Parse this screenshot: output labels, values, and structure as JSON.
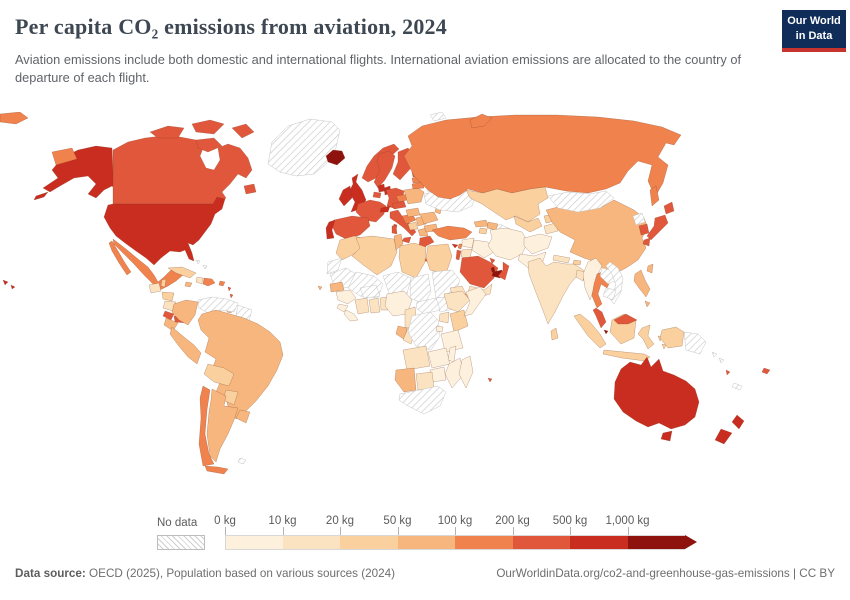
{
  "header": {
    "title": "Per capita CO₂ emissions from aviation, 2024",
    "subtitle": "Aviation emissions include both domestic and international flights. International aviation emissions are allocated to the country of departure of each flight.",
    "logo_line1": "Our World",
    "logo_line2": "in Data",
    "logo_colors": {
      "background": "#102d59",
      "stripe": "#c7342e"
    }
  },
  "legend": {
    "no_data_label": "No data",
    "tick_labels": [
      "0 kg",
      "10 kg",
      "20 kg",
      "50 kg",
      "100 kg",
      "200 kg",
      "500 kg",
      "1,000 kg"
    ]
  },
  "footer": {
    "source_label": "Data source:",
    "source_rest": " OECD (2025), Population based on various sources (2024)",
    "credit": "OurWorldinData.org/co2-and-greenhouse-gas-emissions | CC BY"
  },
  "chart_data": {
    "type": "choropleth",
    "title": "Per capita CO₂ emissions from aviation, 2024",
    "unit": "kg",
    "bins": [
      "0-10",
      "10-20",
      "20-50",
      "50-100",
      "100-200",
      "200-500",
      "500-1000",
      "1000+"
    ],
    "palette": {
      "0-10": "#FDF1DE",
      "10-20": "#FBE3C2",
      "20-50": "#FAD09E",
      "50-100": "#F7B67D",
      "100-200": "#F0824E",
      "200-500": "#E1573C",
      "500-1000": "#C92D20",
      "1000+": "#8E130E",
      "no-data-stroke": "#c6c6c6",
      "country-stroke": "rgba(120,60,30,0.45)"
    },
    "legend_position": "bottom",
    "countries": {
      "United States": "500-1000",
      "Canada": "200-500",
      "Greenland": "no-data",
      "Iceland": "1000+",
      "Mexico": "100-200",
      "Guatemala": "10-20",
      "Belize": "20-50",
      "Honduras": "20-50",
      "Nicaragua": "10-20",
      "Costa Rica": "200-500",
      "Panama": "200-500",
      "Cuba": "20-50",
      "Haiti": "10-20",
      "Dominican Republic": "100-200",
      "Jamaica": "50-100",
      "Puerto Rico": "100-200",
      "Bahamas": "no-data",
      "Trinidad and Tobago": "50-100",
      "Lesser Antilles": "200-500",
      "Colombia": "50-100",
      "Venezuela": "no-data",
      "Guyana": "no-data",
      "Ecuador": "50-100",
      "Peru": "50-100",
      "Brazil": "50-100",
      "Bolivia": "20-50",
      "Paraguay": "20-50",
      "Chile": "100-200",
      "Argentina": "50-100",
      "Uruguay": "50-100",
      "Falkland Islands": "no-data",
      "Norway": "200-500",
      "Sweden": "200-500",
      "Finland": "200-500",
      "Denmark": "500-1000",
      "United Kingdom": "500-1000",
      "Ireland": "500-1000",
      "Netherlands": "500-1000",
      "Belgium": "200-500",
      "Germany": "200-500",
      "France": "200-500",
      "Switzerland": "500-1000",
      "Austria": "200-500",
      "Czechia": "100-200",
      "Poland": "50-100",
      "Spain": "200-500",
      "Portugal": "500-1000",
      "Italy": "200-500",
      "Croatia": "100-200",
      "Bosnia and Herzegovina": "20-50",
      "Serbia": "50-100",
      "Albania": "50-100",
      "Greece": "200-500",
      "Hungary": "50-100",
      "Romania": "50-100",
      "Bulgaria": "50-100",
      "Moldova": "50-100",
      "Estonia": "200-500",
      "Latvia": "100-200",
      "Lithuania": "100-200",
      "Belarus": "no-data",
      "Ukraine": "no-data",
      "Malta": "500-1000",
      "Cyprus": "500-1000",
      "Svalbard": "no-data",
      "Russia": "100-200",
      "Turkey": "100-200",
      "Georgia": "50-100",
      "Armenia": "20-50",
      "Azerbaijan": "50-100",
      "Morocco": "20-50",
      "Western Sahara": "no-data",
      "Algeria": "20-50",
      "Tunisia": "50-100",
      "Libya": "20-50",
      "Egypt": "20-50",
      "Mauritania": "no-data",
      "Mali": "no-data",
      "Burkina Faso": "no-data",
      "Niger": "no-data",
      "Chad": "no-data",
      "Sudan": "no-data",
      "South Sudan": "no-data",
      "Eritrea": "10-20",
      "Djibouti": "50-100",
      "Senegal": "50-100",
      "Cape Verde": "50-100",
      "Guinea": "0-10",
      "Sierra Leone": "0-10",
      "Liberia": "0-10",
      "Ivory Coast": "10-20",
      "Ghana": "10-20",
      "Benin": "10-20",
      "Nigeria": "0-10",
      "Cameroon": "10-20",
      "Central African Republic": "no-data",
      "Gabon": "50-100",
      "Congo": "10-20",
      "Democratic Republic of Congo": "no-data",
      "Uganda": "10-20",
      "Kenya": "20-50",
      "Ethiopia": "10-20",
      "Somalia": "0-10",
      "Rwanda": "0-10",
      "Tanzania": "0-10",
      "Angola": "10-20",
      "Zambia": "0-10",
      "Malawi": "0-10",
      "Mozambique": "0-10",
      "Zimbabwe": "0-10",
      "Namibia": "50-100",
      "Botswana": "10-20",
      "South Africa": "no-data",
      "Madagascar": "0-10",
      "Mauritius": "200-500",
      "Kazakhstan": "20-50",
      "Uzbekistan": "20-50",
      "Turkmenistan": "no-data",
      "Kyrgyzstan": "20-50",
      "Tajikistan": "10-20",
      "Afghanistan": "0-10",
      "Pakistan": "0-10",
      "India": "10-20",
      "Nepal": "10-20",
      "Bhutan": "20-50",
      "Bangladesh": "10-20",
      "Sri Lanka": "20-50",
      "Myanmar": "0-10",
      "Thailand": "100-200",
      "Laos": "no-data",
      "Vietnam": "no-data",
      "Cambodia": "no-data",
      "Malaysia": "200-500",
      "Singapore": "1000+",
      "Indonesia": "20-50",
      "Philippines": "50-100",
      "China": "50-100",
      "Taiwan": "50-100",
      "Mongolia": "no-data",
      "North Korea": "no-data",
      "South Korea": "200-500",
      "Japan": "200-500",
      "Iran": "0-10",
      "Iraq": "0-10",
      "Syria": "0-10",
      "Lebanon": "100-200",
      "Israel": "200-500",
      "Jordan": "10-20",
      "Saudi Arabia": "200-500",
      "Yemen": "10-20",
      "Oman": "200-500",
      "United Arab Emirates": "1000+",
      "Qatar": "1000+",
      "Kuwait": "200-500",
      "Australia": "500-1000",
      "New Zealand": "500-1000",
      "Papua New Guinea": "no-data",
      "Fiji": "200-500",
      "New Caledonia": "no-data",
      "Solomon Islands": "no-data",
      "Vanuatu": "200-500"
    }
  }
}
